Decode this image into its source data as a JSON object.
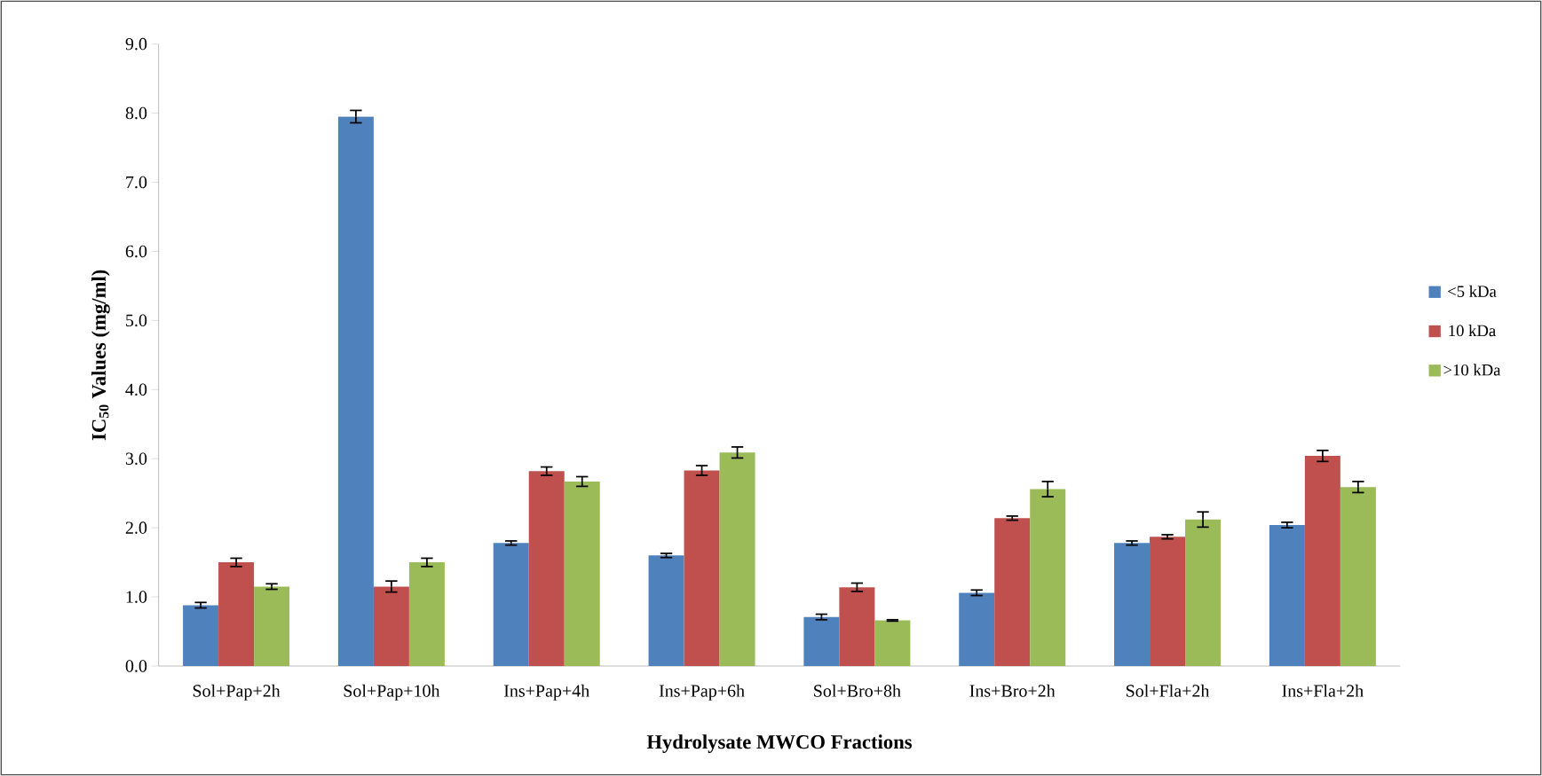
{
  "chart_data": {
    "type": "bar",
    "xlabel": "Hydrolysate MWCO Fractions",
    "ylabel": "IC$_{50}$ Values (mg/ml)",
    "categories": [
      "Sol+Pap+2h",
      "Sol+Pap+10h",
      "Ins+Pap+4h",
      "Ins+Pap+6h",
      "Sol+Bro+8h",
      "Ins+Bro+2h",
      "Sol+Fla+2h",
      "Ins+Fla+2h"
    ],
    "series": [
      {
        "name": "<5 kDa",
        "color": "#4f81bd",
        "values": [
          0.88,
          7.95,
          1.78,
          1.6,
          0.71,
          1.06,
          1.78,
          2.04
        ],
        "errors": [
          0.04,
          0.09,
          0.03,
          0.03,
          0.04,
          0.04,
          0.03,
          0.04
        ]
      },
      {
        "name": "10 kDa",
        "color": "#c0504d",
        "values": [
          1.5,
          1.15,
          2.82,
          2.83,
          1.14,
          2.14,
          1.87,
          3.04
        ],
        "errors": [
          0.06,
          0.08,
          0.06,
          0.07,
          0.06,
          0.03,
          0.03,
          0.08
        ]
      },
      {
        "name": ">10 kDa",
        "color": "#9bbb59",
        "values": [
          1.15,
          1.5,
          2.67,
          3.09,
          0.66,
          2.56,
          2.12,
          2.59
        ],
        "errors": [
          0.04,
          0.06,
          0.07,
          0.08,
          0.01,
          0.11,
          0.11,
          0.08
        ]
      }
    ],
    "ylim": [
      0,
      9
    ],
    "yticks": [
      {
        "value": 0,
        "label": "0.0"
      },
      {
        "value": 1,
        "label": "1.0"
      },
      {
        "value": 2,
        "label": "2.0"
      },
      {
        "value": 3,
        "label": "3.0"
      },
      {
        "value": 4,
        "label": "4.0"
      },
      {
        "value": 5,
        "label": "5.0"
      },
      {
        "value": 6,
        "label": "6.0"
      },
      {
        "value": 7,
        "label": "7.0"
      },
      {
        "value": 8,
        "label": "8.0"
      },
      {
        "value": 9,
        "label": "9.0"
      }
    ],
    "legend": "right"
  }
}
